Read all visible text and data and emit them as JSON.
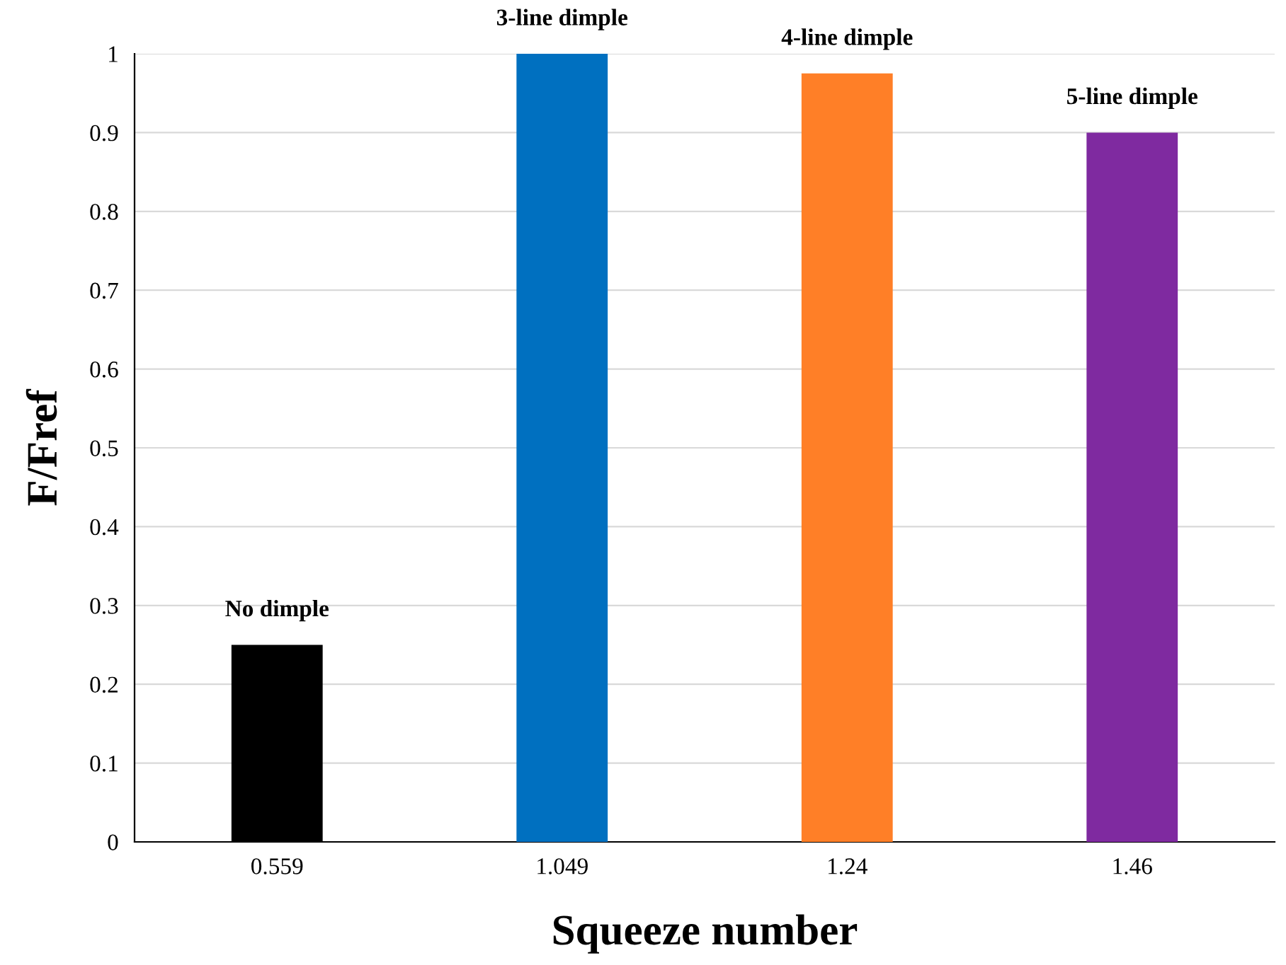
{
  "chart_data": {
    "type": "bar",
    "xlabel": "Squeeze number",
    "ylabel": "F/Fref",
    "categories": [
      "0.559",
      "1.049",
      "1.24",
      "1.46"
    ],
    "values": [
      0.25,
      1.0,
      0.975,
      0.9
    ],
    "colors": [
      "#000000",
      "#0070c0",
      "#ff7f27",
      "#7f2aa0"
    ],
    "ylim": [
      0,
      1
    ],
    "yticks": [
      0,
      {
        "value": 0.1,
        "label": "0.1"
      },
      {
        "value": 0.2,
        "label": "0.2"
      },
      {
        "value": 0.3,
        "label": "0.3"
      },
      {
        "value": 0.4,
        "label": "0.4"
      },
      {
        "value": 0.5,
        "label": "0.5"
      },
      {
        "value": 0.6,
        "label": "0.6"
      },
      {
        "value": 0.7,
        "label": "0.7"
      },
      {
        "value": 0.8,
        "label": "0.8"
      },
      {
        "value": 0.9,
        "label": "0.9"
      },
      1
    ],
    "grid": "y",
    "annotations": [
      {
        "text": "No dimple",
        "x": "0.559",
        "y": 0.25
      },
      {
        "text": "3-line dimple",
        "x": "1.049",
        "y": 1.0
      },
      {
        "text": "4-line dimple",
        "x": "1.24",
        "y": 0.975
      },
      {
        "text": "5-line dimple",
        "x": "1.46",
        "y": 0.9
      }
    ]
  }
}
